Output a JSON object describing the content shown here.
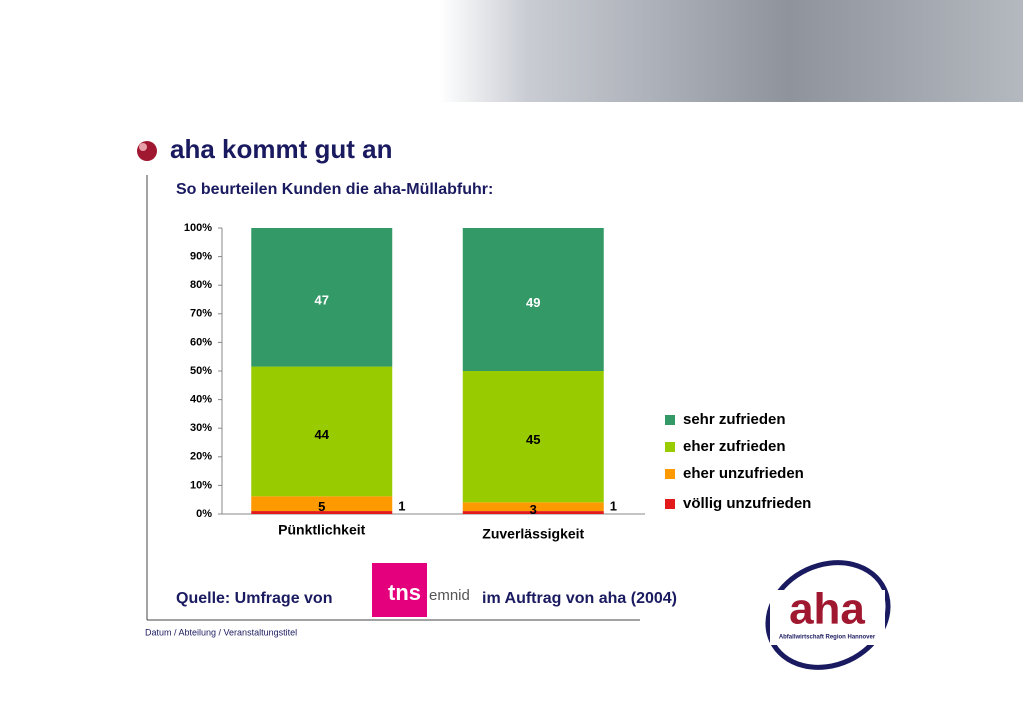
{
  "header": {
    "title": "aha kommt gut an"
  },
  "chart_data": {
    "type": "stacked_percent_bar",
    "title": "So beurteilen Kunden die aha-Müllabfuhr:",
    "categories": [
      "Pünktlichkeit",
      "Zuverlässigkeit"
    ],
    "series": [
      {
        "name": "sehr zufrieden",
        "color": "#339966",
        "values": [
          47,
          49
        ]
      },
      {
        "name": "eher zufrieden",
        "color": "#99cc00",
        "values": [
          44,
          45
        ]
      },
      {
        "name": "eher unzufrieden",
        "color": "#ff9900",
        "values": [
          5,
          3
        ]
      },
      {
        "name": "völlig unzufrieden",
        "color": "#e31a1c",
        "values": [
          1,
          1
        ]
      }
    ],
    "ylim": [
      0,
      100
    ],
    "yticks": [
      {
        "value": 0,
        "label": "0%"
      },
      {
        "value": 10,
        "label": "10%"
      },
      {
        "value": 20,
        "label": "20%"
      },
      {
        "value": 30,
        "label": "30%"
      },
      {
        "value": 40,
        "label": "40%"
      },
      {
        "value": 50,
        "label": "50%"
      },
      {
        "value": 60,
        "label": "60%"
      },
      {
        "value": 70,
        "label": "70%"
      },
      {
        "value": 80,
        "label": "80%"
      },
      {
        "value": 90,
        "label": "90%"
      },
      {
        "value": 100,
        "label": "100%"
      }
    ],
    "legend": "right"
  },
  "source": {
    "prefix": "Quelle: Umfrage von",
    "suffix": "im Auftrag von aha (2004)",
    "logo_main": "tns",
    "logo_sub": "emnid"
  },
  "footer": {
    "text": "Datum / Abteilung / Veranstaltungstitel"
  },
  "logo": {
    "name": "aha",
    "subtitle": "Abfallwirtschaft Region Hannover"
  }
}
